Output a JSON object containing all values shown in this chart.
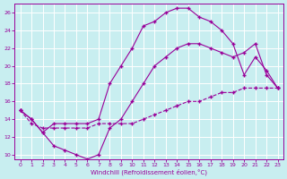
{
  "xlabel": "Windchill (Refroidissement éolien,°C)",
  "background_color": "#c8eef0",
  "line_color": "#990099",
  "grid_color": "#ffffff",
  "xlim": [
    -0.5,
    23.5
  ],
  "ylim": [
    9.5,
    27
  ],
  "xticks": [
    0,
    1,
    2,
    3,
    4,
    5,
    6,
    7,
    8,
    9,
    10,
    11,
    12,
    13,
    14,
    15,
    16,
    17,
    18,
    19,
    20,
    21,
    22,
    23
  ],
  "yticks": [
    10,
    12,
    14,
    16,
    18,
    20,
    22,
    24,
    26
  ],
  "y_upper": [
    15,
    14,
    12.5,
    13.5,
    13.5,
    13.5,
    13.5,
    14,
    18,
    20,
    22,
    24.5,
    25,
    26,
    26.5,
    26.5,
    25.5,
    25,
    24,
    22.5,
    19,
    21,
    19.5,
    17.5
  ],
  "y_mid": [
    15,
    14,
    12.5,
    11,
    10.5,
    10,
    9.5,
    10,
    13,
    14,
    16,
    18,
    20,
    21,
    22,
    22.5,
    22.5,
    22,
    21.5,
    21,
    21.5,
    22.5,
    19,
    17.5
  ],
  "y_lower": [
    15,
    13.5,
    13,
    13,
    13,
    13,
    13,
    13.5,
    13.5,
    13.5,
    13.5,
    14,
    14.5,
    15,
    15.5,
    16,
    16,
    16.5,
    17,
    17,
    17.5,
    17.5,
    17.5,
    17.5
  ]
}
